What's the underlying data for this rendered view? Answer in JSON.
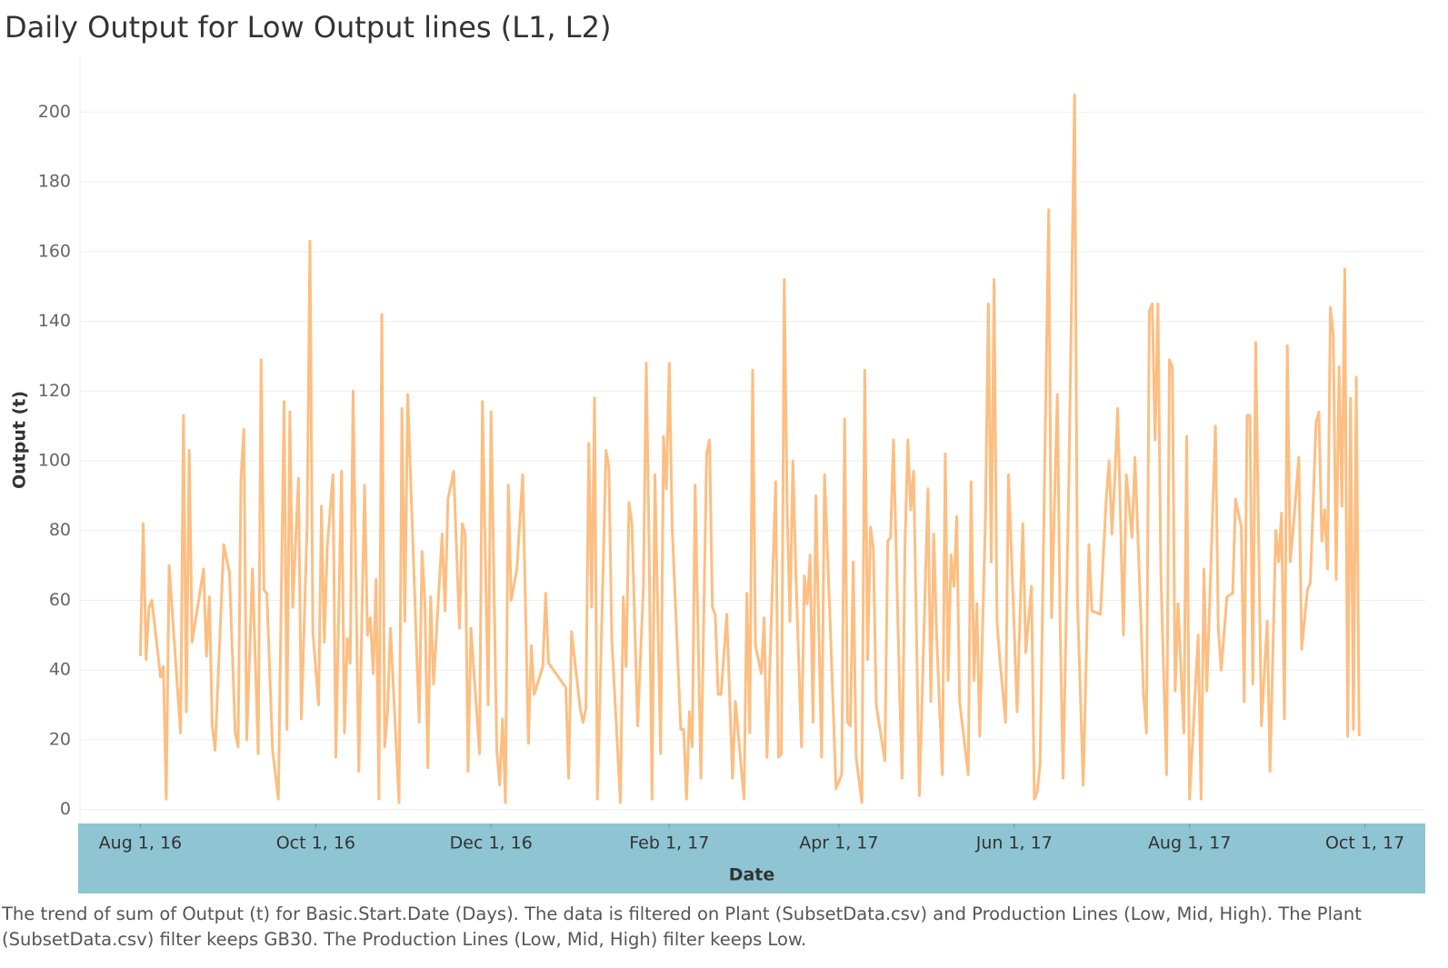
{
  "chart_data": {
    "type": "line",
    "title": "Daily Output for Low Output lines (L1, L2)",
    "x_label": "Date",
    "y_label": "Output (t)",
    "caption": "The trend of sum of Output (t) for Basic.Start.Date (Days). The data is filtered on Plant (SubsetData.csv) and Production Lines (Low, Mid, High). The Plant (SubsetData.csv) filter keeps GB30. The Production Lines (Low, Mid, High) filter keeps Low.",
    "grid": true,
    "xlim": [
      "2016-07-11",
      "2017-10-22"
    ],
    "xticks": [
      {
        "value": "2016-08-01",
        "label": "Aug 1, 16"
      },
      {
        "value": "2016-10-01",
        "label": "Oct 1, 16"
      },
      {
        "value": "2016-12-01",
        "label": "Dec 1, 16"
      },
      {
        "value": "2017-02-01",
        "label": "Feb 1, 17"
      },
      {
        "value": "2017-04-01",
        "label": "Apr 1, 17"
      },
      {
        "value": "2017-06-01",
        "label": "Jun 1, 17"
      },
      {
        "value": "2017-08-01",
        "label": "Aug 1, 17"
      },
      {
        "value": "2017-10-01",
        "label": "Oct 1, 17"
      }
    ],
    "ylim": [
      -4,
      216
    ],
    "yticks": [
      0,
      20,
      40,
      60,
      80,
      100,
      120,
      140,
      160,
      180,
      200
    ],
    "x": [
      "2016-08-01",
      "2016-08-02",
      "2016-08-03",
      "2016-08-04",
      "2016-08-05",
      "2016-08-08",
      "2016-08-09",
      "2016-08-10",
      "2016-08-11",
      "2016-08-15",
      "2016-08-16",
      "2016-08-17",
      "2016-08-18",
      "2016-08-19",
      "2016-08-23",
      "2016-08-24",
      "2016-08-25",
      "2016-08-26",
      "2016-08-27",
      "2016-08-30",
      "2016-09-01",
      "2016-09-03",
      "2016-09-04",
      "2016-09-05",
      "2016-09-06",
      "2016-09-07",
      "2016-09-09",
      "2016-09-11",
      "2016-09-12",
      "2016-09-13",
      "2016-09-14",
      "2016-09-16",
      "2016-09-18",
      "2016-09-20",
      "2016-09-21",
      "2016-09-22",
      "2016-09-23",
      "2016-09-25",
      "2016-09-26",
      "2016-09-28",
      "2016-09-29",
      "2016-09-30",
      "2016-10-02",
      "2016-10-03",
      "2016-10-04",
      "2016-10-05",
      "2016-10-07",
      "2016-10-08",
      "2016-10-10",
      "2016-10-11",
      "2016-10-12",
      "2016-10-13",
      "2016-10-14",
      "2016-10-16",
      "2016-10-18",
      "2016-10-19",
      "2016-10-20",
      "2016-10-21",
      "2016-10-22",
      "2016-10-23",
      "2016-10-24",
      "2016-10-25",
      "2016-10-26",
      "2016-10-27",
      "2016-10-30",
      "2016-10-31",
      "2016-11-01",
      "2016-11-02",
      "2016-11-06",
      "2016-11-07",
      "2016-11-08",
      "2016-11-09",
      "2016-11-10",
      "2016-11-11",
      "2016-11-13",
      "2016-11-14",
      "2016-11-15",
      "2016-11-16",
      "2016-11-18",
      "2016-11-20",
      "2016-11-21",
      "2016-11-22",
      "2016-11-23",
      "2016-11-24",
      "2016-11-27",
      "2016-11-28",
      "2016-11-30",
      "2016-12-01",
      "2016-12-03",
      "2016-12-04",
      "2016-12-05",
      "2016-12-06",
      "2016-12-07",
      "2016-12-08",
      "2016-12-10",
      "2016-12-12",
      "2016-12-14",
      "2016-12-15",
      "2016-12-16",
      "2016-12-19",
      "2016-12-20",
      "2016-12-21",
      "2016-12-27",
      "2016-12-28",
      "2016-12-29",
      "2017-01-01",
      "2017-01-02",
      "2017-01-03",
      "2017-01-04",
      "2017-01-05",
      "2017-01-06",
      "2017-01-07",
      "2017-01-10",
      "2017-01-11",
      "2017-01-12",
      "2017-01-15",
      "2017-01-16",
      "2017-01-17",
      "2017-01-18",
      "2017-01-19",
      "2017-01-21",
      "2017-01-23",
      "2017-01-24",
      "2017-01-25",
      "2017-01-26",
      "2017-01-27",
      "2017-01-29",
      "2017-01-30",
      "2017-01-31",
      "2017-02-01",
      "2017-02-02",
      "2017-02-05",
      "2017-02-06",
      "2017-02-07",
      "2017-02-08",
      "2017-02-09",
      "2017-02-10",
      "2017-02-12",
      "2017-02-14",
      "2017-02-15",
      "2017-02-16",
      "2017-02-17",
      "2017-02-18",
      "2017-02-19",
      "2017-02-21",
      "2017-02-23",
      "2017-02-24",
      "2017-02-27",
      "2017-02-28",
      "2017-03-01",
      "2017-03-02",
      "2017-03-03",
      "2017-03-05",
      "2017-03-06",
      "2017-03-07",
      "2017-03-10",
      "2017-03-11",
      "2017-03-12",
      "2017-03-13",
      "2017-03-14",
      "2017-03-15",
      "2017-03-16",
      "2017-03-17",
      "2017-03-19",
      "2017-03-20",
      "2017-03-21",
      "2017-03-22",
      "2017-03-23",
      "2017-03-24",
      "2017-03-26",
      "2017-03-27",
      "2017-03-29",
      "2017-03-31",
      "2017-04-02",
      "2017-04-03",
      "2017-04-04",
      "2017-04-05",
      "2017-04-06",
      "2017-04-07",
      "2017-04-09",
      "2017-04-10",
      "2017-04-11",
      "2017-04-12",
      "2017-04-13",
      "2017-04-14",
      "2017-04-17",
      "2017-04-18",
      "2017-04-19",
      "2017-04-20",
      "2017-04-22",
      "2017-04-23",
      "2017-04-24",
      "2017-04-25",
      "2017-04-26",
      "2017-04-27",
      "2017-04-29",
      "2017-05-02",
      "2017-05-03",
      "2017-05-04",
      "2017-05-05",
      "2017-05-07",
      "2017-05-08",
      "2017-05-09",
      "2017-05-10",
      "2017-05-11",
      "2017-05-12",
      "2017-05-13",
      "2017-05-16",
      "2017-05-17",
      "2017-05-18",
      "2017-05-19",
      "2017-05-20",
      "2017-05-22",
      "2017-05-23",
      "2017-05-24",
      "2017-05-25",
      "2017-05-26",
      "2017-05-27",
      "2017-05-29",
      "2017-05-30",
      "2017-06-01",
      "2017-06-02",
      "2017-06-04",
      "2017-06-05",
      "2017-06-07",
      "2017-06-08",
      "2017-06-09",
      "2017-06-10",
      "2017-06-13",
      "2017-06-14",
      "2017-06-16",
      "2017-06-17",
      "2017-06-18",
      "2017-06-20",
      "2017-06-22",
      "2017-06-23",
      "2017-06-25",
      "2017-06-27",
      "2017-06-28",
      "2017-07-01",
      "2017-07-03",
      "2017-07-04",
      "2017-07-05",
      "2017-07-06",
      "2017-07-07",
      "2017-07-09",
      "2017-07-10",
      "2017-07-12",
      "2017-07-13",
      "2017-07-14",
      "2017-07-16",
      "2017-07-17",
      "2017-07-18",
      "2017-07-19",
      "2017-07-20",
      "2017-07-21",
      "2017-07-22",
      "2017-07-24",
      "2017-07-25",
      "2017-07-26",
      "2017-07-27",
      "2017-07-28",
      "2017-07-30",
      "2017-07-31",
      "2017-08-01",
      "2017-08-04",
      "2017-08-05",
      "2017-08-06",
      "2017-08-07",
      "2017-08-10",
      "2017-08-11",
      "2017-08-12",
      "2017-08-14",
      "2017-08-16",
      "2017-08-17",
      "2017-08-19",
      "2017-08-20",
      "2017-08-21",
      "2017-08-22",
      "2017-08-23",
      "2017-08-24",
      "2017-08-26",
      "2017-08-28",
      "2017-08-29",
      "2017-08-31",
      "2017-09-01",
      "2017-09-02",
      "2017-09-03",
      "2017-09-04",
      "2017-09-05",
      "2017-09-06",
      "2017-09-08",
      "2017-09-09",
      "2017-09-11",
      "2017-09-12",
      "2017-09-14",
      "2017-09-15",
      "2017-09-16",
      "2017-09-17",
      "2017-09-18",
      "2017-09-19",
      "2017-09-20",
      "2017-09-21",
      "2017-09-22",
      "2017-09-23",
      "2017-09-24",
      "2017-09-25",
      "2017-09-26",
      "2017-09-27",
      "2017-09-28",
      "2017-09-29"
    ],
    "series": [
      {
        "name": "Output (t)",
        "color": "#fdbe81",
        "values": [
          44,
          82,
          43,
          58,
          60,
          38,
          41,
          3,
          70,
          22,
          113,
          28,
          103,
          48,
          69,
          44,
          61,
          24,
          17,
          76,
          68,
          22,
          18,
          95,
          109,
          20,
          69,
          16,
          129,
          63,
          62,
          17,
          3,
          117,
          23,
          114,
          58,
          95,
          26,
          81,
          163,
          51,
          30,
          87,
          48,
          75,
          96,
          15,
          97,
          22,
          49,
          42,
          120,
          11,
          93,
          50,
          55,
          39,
          66,
          3,
          142,
          18,
          28,
          52,
          2,
          115,
          54,
          119,
          25,
          74,
          59,
          12,
          61,
          36,
          65,
          79,
          57,
          89,
          97,
          52,
          82,
          79,
          11,
          52,
          16,
          117,
          30,
          114,
          17,
          7,
          26,
          2,
          93,
          60,
          69,
          96,
          19,
          47,
          33,
          41,
          62,
          42,
          35,
          9,
          51,
          29,
          25,
          29,
          105,
          58,
          118,
          3,
          103,
          98,
          49,
          2,
          61,
          41,
          88,
          82,
          24,
          64,
          128,
          74,
          3,
          96,
          16,
          107,
          92,
          128,
          81,
          23,
          23,
          3,
          28,
          18,
          93,
          9,
          102,
          106,
          58,
          56,
          33,
          33,
          56,
          9,
          31,
          3,
          62,
          22,
          126,
          47,
          39,
          55,
          15,
          94,
          15,
          16,
          152,
          86,
          54,
          100,
          69,
          18,
          67,
          59,
          73,
          25,
          90,
          15,
          96,
          53,
          6,
          10,
          112,
          25,
          24,
          71,
          15,
          2,
          126,
          43,
          81,
          75,
          30,
          14,
          77,
          78,
          106,
          38,
          9,
          76,
          106,
          86,
          97,
          4,
          92,
          31,
          79,
          50,
          10,
          102,
          37,
          73,
          64,
          84,
          31,
          10,
          94,
          37,
          59,
          21,
          84,
          145,
          71,
          152,
          54,
          43,
          25,
          96,
          52,
          28,
          82,
          45,
          64,
          3,
          5,
          13,
          172,
          55,
          119,
          52,
          9,
          94,
          205,
          60,
          7,
          76,
          57,
          56,
          89,
          100,
          79,
          95,
          115,
          50,
          96,
          78,
          101,
          79,
          33,
          22,
          143,
          145,
          106,
          145,
          68,
          10,
          129,
          127,
          34,
          59,
          22,
          107,
          3,
          50,
          3,
          69,
          34,
          110,
          52,
          40,
          61,
          62,
          89,
          81,
          31,
          113,
          113,
          36,
          134,
          24,
          54,
          11,
          80,
          71,
          85,
          26,
          133,
          71,
          80,
          101,
          46,
          63,
          65,
          111,
          114,
          77,
          86,
          69,
          144,
          136,
          66,
          127,
          87,
          155,
          21,
          118,
          23,
          124,
          21
        ]
      }
    ]
  }
}
